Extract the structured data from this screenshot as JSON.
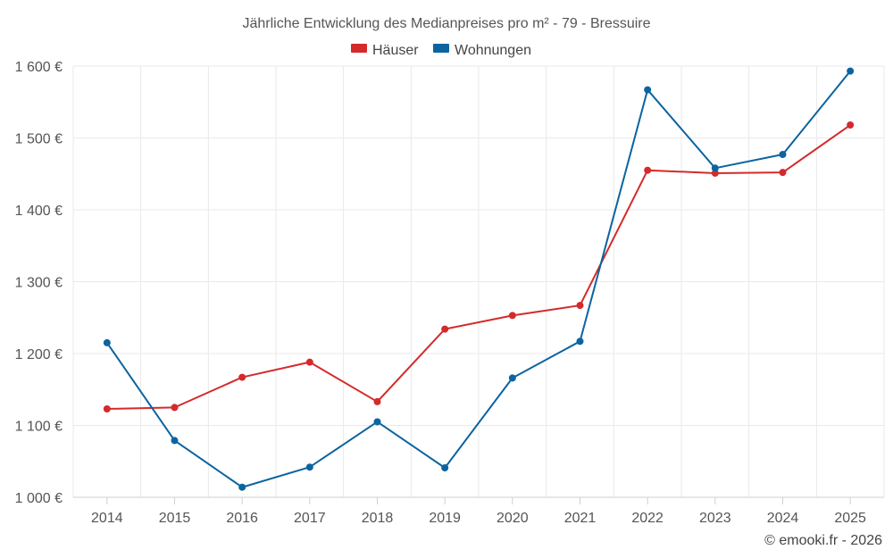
{
  "chart_data": {
    "type": "line",
    "title": "Jährliche Entwicklung des Medianpreises pro m² - 79 - Bressuire",
    "categories": [
      "2014",
      "2015",
      "2016",
      "2017",
      "2018",
      "2019",
      "2020",
      "2021",
      "2022",
      "2023",
      "2024",
      "2025"
    ],
    "series": [
      {
        "name": "Häuser",
        "color": "#d42a2a",
        "values": [
          1123,
          1125,
          1167,
          1188,
          1133,
          1234,
          1253,
          1267,
          1455,
          1451,
          1452,
          1518
        ]
      },
      {
        "name": "Wohnungen",
        "color": "#0a64a0",
        "values": [
          1215,
          1079,
          1014,
          1042,
          1105,
          1041,
          1166,
          1217,
          1567,
          1458,
          1477,
          1593
        ]
      }
    ],
    "ylim": [
      1000,
      1600
    ],
    "yticks": [
      1000,
      1100,
      1200,
      1300,
      1400,
      1500,
      1600
    ],
    "ytick_labels": [
      "1 000 €",
      "1 100 €",
      "1 200 €",
      "1 300 €",
      "1 400 €",
      "1 500 €",
      "1 600 €"
    ],
    "xlabel": "",
    "ylabel": "",
    "grid": true,
    "legend_position": "top-center"
  },
  "credit": "© emooki.fr - 2026"
}
